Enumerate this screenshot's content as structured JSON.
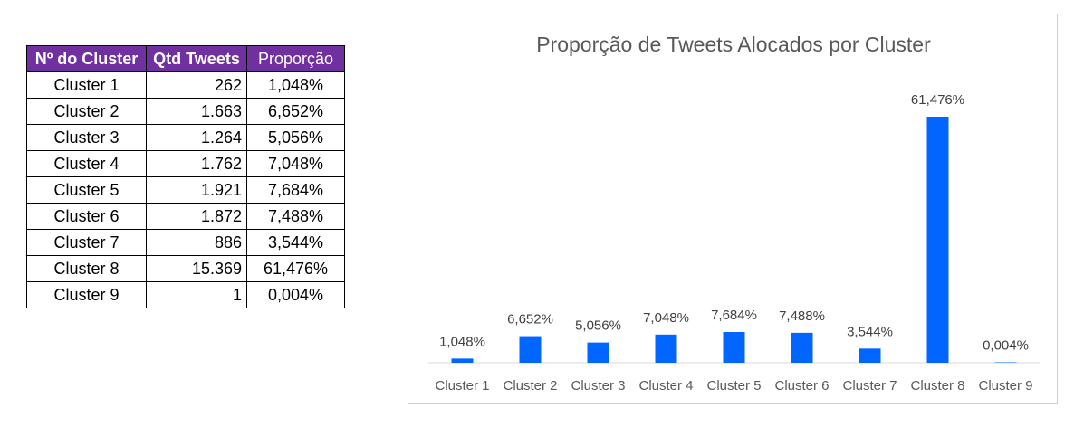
{
  "table": {
    "headers": [
      "Nº do Cluster",
      "Qtd Tweets",
      "Proporção"
    ],
    "rows": [
      [
        "Cluster 1",
        "262",
        "1,048%"
      ],
      [
        "Cluster 2",
        "1.663",
        "6,652%"
      ],
      [
        "Cluster 3",
        "1.264",
        "5,056%"
      ],
      [
        "Cluster 4",
        "1.762",
        "7,048%"
      ],
      [
        "Cluster 5",
        "1.921",
        "7,684%"
      ],
      [
        "Cluster 6",
        "1.872",
        "7,488%"
      ],
      [
        "Cluster 7",
        "886",
        "3,544%"
      ],
      [
        "Cluster 8",
        "15.369",
        "61,476%"
      ],
      [
        "Cluster 9",
        "1",
        "0,004%"
      ]
    ]
  },
  "chart_data": {
    "type": "bar",
    "title": "Proporção de Tweets Alocados por Cluster",
    "xlabel": "",
    "ylabel": "",
    "categories": [
      "Cluster 1",
      "Cluster 2",
      "Cluster 3",
      "Cluster 4",
      "Cluster 5",
      "Cluster 6",
      "Cluster 7",
      "Cluster 8",
      "Cluster 9"
    ],
    "values": [
      1.048,
      6.652,
      5.056,
      7.048,
      7.684,
      7.488,
      3.544,
      61.476,
      0.004
    ],
    "data_labels": [
      "1,048%",
      "6,652%",
      "5,056%",
      "7,048%",
      "7,684%",
      "7,488%",
      "3,544%",
      "61,476%",
      "0,004%"
    ],
    "bar_color": "#0066ff",
    "grid": false,
    "legend": "none"
  }
}
